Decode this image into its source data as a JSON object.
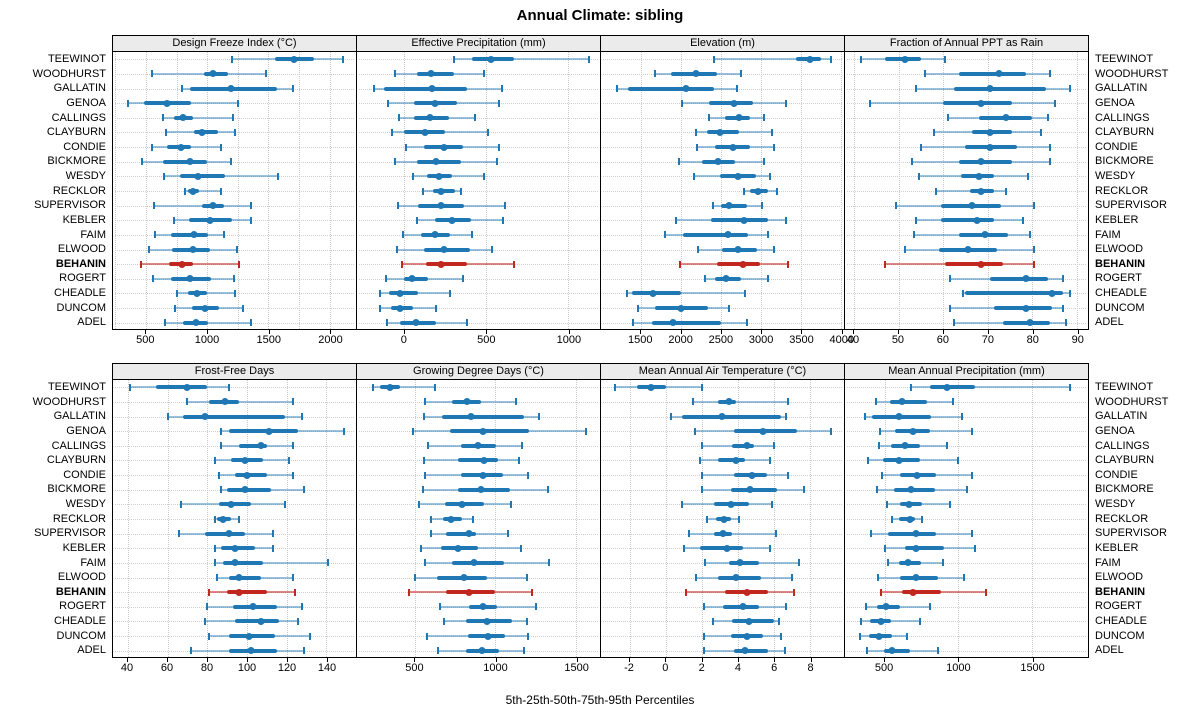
{
  "title": "Annual Climate: sibling",
  "caption": "5th-25th-50th-75th-95th Percentiles",
  "percentile_labels": [
    "5th",
    "25th",
    "50th",
    "75th",
    "95th"
  ],
  "highlight_station": "BEHANIN",
  "colors": {
    "series": "#1f77b4",
    "series_light": "rgba(31,119,180,0.45)",
    "highlight": "#c2271f",
    "highlight_light": "rgba(194,39,31,0.55)",
    "header_bg": "#ebebeb",
    "grid": "#c9c9c9",
    "border": "#000000"
  },
  "stations": [
    "TEEWINOT",
    "WOODHURST",
    "GALLATIN",
    "GENOA",
    "CALLINGS",
    "CLAYBURN",
    "CONDIE",
    "BICKMORE",
    "WESDY",
    "RECKLOR",
    "SUPERVISOR",
    "KEBLER",
    "FAIM",
    "ELWOOD",
    "BEHANIN",
    "ROGERT",
    "CHEADLE",
    "DUNCOM",
    "ADEL"
  ],
  "chart_data": [
    {
      "type": "percentile-range",
      "title": "Design Freeze Index (°C)",
      "xticks": [
        500,
        1000,
        1500,
        2000
      ],
      "xlim": [
        230,
        2215
      ],
      "grid_step": 250,
      "series": {
        "TEEWINOT": [
          1200,
          1550,
          1710,
          1870,
          2110
        ],
        "WOODHURST": [
          550,
          970,
          1050,
          1170,
          1480
        ],
        "GALLATIN": [
          790,
          860,
          1190,
          1570,
          1700
        ],
        "GENOA": [
          355,
          480,
          675,
          865,
          1255
        ],
        "CALLINGS": [
          635,
          730,
          800,
          880,
          1210
        ],
        "CLAYBURN": [
          660,
          890,
          955,
          1090,
          1225
        ],
        "CONDIE": [
          545,
          675,
          785,
          865,
          1110
        ],
        "BICKMORE": [
          465,
          635,
          855,
          1000,
          1190
        ],
        "WESDY": [
          650,
          780,
          925,
          1145,
          1575
        ],
        "RECKLOR": [
          815,
          840,
          880,
          935,
          1110
        ],
        "SUPERVISOR": [
          565,
          960,
          1050,
          1135,
          1355
        ],
        "KEBLER": [
          725,
          850,
          1020,
          1205,
          1355
        ],
        "FAIM": [
          575,
          700,
          895,
          1010,
          1135
        ],
        "ELWOOD": [
          525,
          710,
          880,
          1025,
          1245
        ],
        "BEHANIN": [
          460,
          685,
          795,
          880,
          1260
        ],
        "ROGERT": [
          555,
          700,
          860,
          1030,
          1220
        ],
        "CHEADLE": [
          750,
          845,
          915,
          1000,
          1225
        ],
        "DUNCOM": [
          735,
          875,
          985,
          1100,
          1295
        ],
        "ADEL": [
          655,
          800,
          910,
          1005,
          1355
        ]
      }
    },
    {
      "type": "percentile-range",
      "title": "Effective Precipitation (mm)",
      "xticks": [
        0,
        500,
        1000
      ],
      "xlim": [
        -290,
        1195
      ],
      "grid_step": null,
      "series": {
        "TEEWINOT": [
          305,
          415,
          530,
          670,
          1130
        ],
        "WOODHURST": [
          -55,
          75,
          160,
          300,
          485
        ],
        "GALLATIN": [
          -185,
          -125,
          170,
          385,
          595
        ],
        "GENOA": [
          -100,
          60,
          185,
          320,
          580
        ],
        "CALLINGS": [
          -35,
          60,
          155,
          275,
          430
        ],
        "CLAYBURN": [
          -75,
          -5,
          125,
          250,
          510
        ],
        "CONDIE": [
          10,
          120,
          240,
          355,
          580
        ],
        "BICKMORE": [
          -60,
          75,
          190,
          345,
          565
        ],
        "WESDY": [
          55,
          140,
          210,
          290,
          485
        ],
        "RECKLOR": [
          115,
          175,
          225,
          310,
          345
        ],
        "SUPERVISOR": [
          -40,
          80,
          225,
          365,
          615
        ],
        "KEBLER": [
          75,
          185,
          290,
          405,
          605
        ],
        "FAIM": [
          -10,
          100,
          185,
          280,
          415
        ],
        "ELWOOD": [
          -45,
          120,
          240,
          400,
          535
        ],
        "BEHANIN": [
          -15,
          130,
          225,
          385,
          670
        ],
        "ROGERT": [
          -110,
          0,
          45,
          145,
          355
        ],
        "CHEADLE": [
          -150,
          -95,
          -25,
          80,
          280
        ],
        "DUNCOM": [
          -150,
          -80,
          -30,
          55,
          195
        ],
        "ADEL": [
          -105,
          -30,
          70,
          190,
          385
        ]
      }
    },
    {
      "type": "percentile-range",
      "title": "Elevation (m)",
      "xticks": [
        1500,
        2000,
        2500,
        3000,
        3500,
        4000
      ],
      "xlim": [
        1000,
        4040
      ],
      "grid_step": null,
      "series": {
        "TEEWINOT": [
          2410,
          3435,
          3610,
          3750,
          3875
        ],
        "WOODHURST": [
          1675,
          1875,
          2185,
          2450,
          2755
        ],
        "GALLATIN": [
          1205,
          1340,
          2060,
          2410,
          2700
        ],
        "GENOA": [
          2010,
          2355,
          2660,
          2900,
          3320
        ],
        "CALLINGS": [
          2355,
          2550,
          2730,
          2865,
          3045
        ],
        "CLAYBURN": [
          2185,
          2325,
          2490,
          2730,
          3140
        ],
        "CONDIE": [
          2195,
          2420,
          2650,
          2870,
          3170
        ],
        "BICKMORE": [
          1980,
          2265,
          2460,
          2680,
          3040
        ],
        "WESDY": [
          2160,
          2490,
          2720,
          2935,
          3110
        ],
        "RECKLOR": [
          2795,
          2870,
          2970,
          3090,
          3200
        ],
        "SUPERVISOR": [
          2395,
          2495,
          2605,
          2830,
          3015
        ],
        "KEBLER": [
          1935,
          2375,
          2785,
          3095,
          3310
        ],
        "FAIM": [
          1800,
          2020,
          2595,
          2845,
          3090
        ],
        "ELWOOD": [
          2210,
          2510,
          2720,
          2955,
          3165
        ],
        "BEHANIN": [
          1990,
          2445,
          2775,
          2995,
          3340
        ],
        "ROGERT": [
          2305,
          2420,
          2565,
          2755,
          3095
        ],
        "CHEADLE": [
          1330,
          1390,
          1650,
          2005,
          2805
        ],
        "DUNCOM": [
          1460,
          1675,
          2000,
          2340,
          2600
        ],
        "ADEL": [
          1400,
          1635,
          1895,
          2500,
          2830
        ]
      }
    },
    {
      "type": "percentile-range",
      "title": "Fraction of Annual PPT as Rain",
      "xticks": [
        40,
        50,
        60,
        70,
        80,
        90
      ],
      "xlim": [
        38,
        92.5
      ],
      "grid_step": null,
      "series": {
        "TEEWINOT": [
          41.5,
          47,
          51.5,
          55,
          60.5
        ],
        "WOODHURST": [
          56,
          63.5,
          72.5,
          78.5,
          84
        ],
        "GALLATIN": [
          54,
          62.5,
          70.5,
          83,
          88.5
        ],
        "GENOA": [
          43.5,
          60,
          68.5,
          75.5,
          85
        ],
        "CALLINGS": [
          61,
          68,
          74,
          80,
          83.5
        ],
        "CLAYBURN": [
          58,
          66.5,
          70.5,
          75.5,
          82
        ],
        "CONDIE": [
          55,
          65,
          70.5,
          76.5,
          84
        ],
        "BICKMORE": [
          53,
          63.5,
          68.5,
          75.5,
          84
        ],
        "WESDY": [
          54.5,
          64,
          68,
          71.5,
          79
        ],
        "RECKLOR": [
          58.5,
          66,
          68.5,
          71.5,
          74
        ],
        "SUPERVISOR": [
          49.5,
          59.5,
          66.5,
          73,
          80.5
        ],
        "KEBLER": [
          54,
          59.5,
          67.5,
          71.5,
          78
        ],
        "FAIM": [
          53.5,
          63.5,
          69.5,
          74.5,
          79.5
        ],
        "ELWOOD": [
          51.5,
          59,
          65.5,
          72,
          80.5
        ],
        "BEHANIN": [
          47,
          60.5,
          68.5,
          73.5,
          80.5
        ],
        "ROGERT": [
          61.5,
          70.5,
          78.5,
          83.5,
          87
        ],
        "CHEADLE": [
          64.5,
          65,
          84.5,
          87,
          88.5
        ],
        "DUNCOM": [
          61.5,
          71.5,
          78.5,
          84.5,
          87
        ],
        "ADEL": [
          62.5,
          73.5,
          79.5,
          84,
          87.5
        ]
      }
    },
    {
      "type": "percentile-range",
      "title": "Frost-Free Days",
      "xticks": [
        40,
        60,
        80,
        100,
        120,
        140
      ],
      "xlim": [
        32.5,
        155
      ],
      "grid_step": null,
      "series": {
        "TEEWINOT": [
          41,
          54,
          70,
          80,
          91
        ],
        "WOODHURST": [
          70,
          81,
          89,
          96,
          123
        ],
        "GALLATIN": [
          60,
          68,
          79,
          119,
          128
        ],
        "GENOA": [
          87,
          91,
          111,
          126,
          149
        ],
        "CALLINGS": [
          87,
          96,
          107,
          110,
          123
        ],
        "CLAYBURN": [
          84,
          92,
          99,
          108,
          121
        ],
        "CONDIE": [
          86,
          94,
          100,
          110,
          123
        ],
        "BICKMORE": [
          87,
          90,
          99,
          112,
          129
        ],
        "WESDY": [
          67,
          86,
          92,
          102,
          119
        ],
        "RECKLOR": [
          84,
          85,
          88,
          92,
          96
        ],
        "SUPERVISOR": [
          66,
          79,
          91,
          99,
          113
        ],
        "KEBLER": [
          84,
          87,
          94,
          104,
          113
        ],
        "FAIM": [
          84,
          88,
          94,
          108,
          141
        ],
        "ELWOOD": [
          85,
          91,
          96,
          107,
          123
        ],
        "BEHANIN": [
          81,
          90,
          96,
          110,
          124
        ],
        "ROGERT": [
          80,
          93,
          103,
          115,
          128
        ],
        "CHEADLE": [
          79,
          94,
          107,
          116,
          126
        ],
        "DUNCOM": [
          81,
          91,
          101,
          114,
          132
        ],
        "ADEL": [
          72,
          91,
          102,
          115,
          129
        ]
      }
    },
    {
      "type": "percentile-range",
      "title": "Growing Degree Days (°C)",
      "xticks": [
        500,
        1000,
        1500
      ],
      "xlim": [
        140,
        1650
      ],
      "grid_step": null,
      "series": {
        "TEEWINOT": [
          240,
          285,
          345,
          410,
          625
        ],
        "WOODHURST": [
          565,
          730,
          825,
          910,
          1125
        ],
        "GALLATIN": [
          555,
          670,
          850,
          1180,
          1270
        ],
        "GENOA": [
          490,
          715,
          925,
          1210,
          1565
        ],
        "CALLINGS": [
          580,
          785,
          890,
          1005,
          1165
        ],
        "CLAYBURN": [
          555,
          765,
          930,
          1015,
          1145
        ],
        "CONDIE": [
          560,
          785,
          920,
          1045,
          1205
        ],
        "BICKMORE": [
          550,
          765,
          910,
          1090,
          1325
        ],
        "WESDY": [
          525,
          685,
          795,
          930,
          1095
        ],
        "RECKLOR": [
          600,
          675,
          725,
          790,
          860
        ],
        "SUPERVISOR": [
          600,
          690,
          835,
          880,
          1080
        ],
        "KEBLER": [
          535,
          665,
          765,
          895,
          1160
        ],
        "FAIM": [
          560,
          730,
          870,
          1055,
          1335
        ],
        "ELWOOD": [
          500,
          635,
          805,
          950,
          1195
        ],
        "BEHANIN": [
          465,
          690,
          835,
          1000,
          1230
        ],
        "ROGERT": [
          655,
          835,
          925,
          1010,
          1250
        ],
        "CHEADLE": [
          680,
          820,
          950,
          1105,
          1195
        ],
        "DUNCOM": [
          575,
          830,
          955,
          1060,
          1205
        ],
        "ADEL": [
          645,
          815,
          915,
          1025,
          1175
        ]
      }
    },
    {
      "type": "percentile-range",
      "title": "Mean Annual Air Temperature (°C)",
      "xticks": [
        -2,
        0,
        2,
        4,
        6,
        8
      ],
      "xlim": [
        -3.6,
        9.9
      ],
      "grid_step": null,
      "series": {
        "TEEWINOT": [
          -2.8,
          -1.6,
          -0.8,
          0,
          2
        ],
        "WOODHURST": [
          1.5,
          2.9,
          3.5,
          3.9,
          6.8
        ],
        "GALLATIN": [
          0.3,
          0.9,
          3.1,
          6.4,
          6.7
        ],
        "GENOA": [
          1.6,
          3.8,
          5.4,
          7.3,
          9.2
        ],
        "CALLINGS": [
          2,
          3.7,
          4.5,
          4.9,
          6
        ],
        "CLAYBURN": [
          1.9,
          2.9,
          3.9,
          4.4,
          5.8
        ],
        "CONDIE": [
          2,
          3.8,
          4.8,
          5.6,
          6.8
        ],
        "BICKMORE": [
          2,
          3.6,
          4.7,
          6.2,
          7.7
        ],
        "WESDY": [
          0.9,
          2.7,
          3.6,
          4.6,
          5.9
        ],
        "RECKLOR": [
          2.3,
          2.8,
          3.25,
          3.65,
          4.05
        ],
        "SUPERVISOR": [
          1.3,
          2.7,
          3.2,
          3.7,
          6.1
        ],
        "KEBLER": [
          1,
          1.9,
          3.4,
          4.3,
          5.8
        ],
        "FAIM": [
          2.2,
          3.5,
          4.1,
          5.2,
          7.4
        ],
        "ELWOOD": [
          1.7,
          2.9,
          3.9,
          5.3,
          7
        ],
        "BEHANIN": [
          1.1,
          3.3,
          4.5,
          5.7,
          7.1
        ],
        "ROGERT": [
          2.1,
          3.2,
          4.3,
          5.2,
          6.7
        ],
        "CHEADLE": [
          2.6,
          3.7,
          4.6,
          6,
          6.3
        ],
        "DUNCOM": [
          2.1,
          3.6,
          4.5,
          5.4,
          6.4
        ],
        "ADEL": [
          2.1,
          3.8,
          4.4,
          5.7,
          6.6
        ]
      }
    },
    {
      "type": "percentile-range",
      "title": "Mean Annual Precipitation (mm)",
      "xticks": [
        500,
        1000,
        1500
      ],
      "xlim": [
        230,
        1880
      ],
      "grid_step": null,
      "series": {
        "TEEWINOT": [
          675,
          805,
          925,
          1110,
          1760
        ],
        "WOODHURST": [
          440,
          535,
          620,
          785,
          960
        ],
        "GALLATIN": [
          365,
          415,
          595,
          815,
          1025
        ],
        "GENOA": [
          465,
          570,
          695,
          810,
          1090
        ],
        "CALLINGS": [
          460,
          545,
          635,
          740,
          920
        ],
        "CLAYBURN": [
          385,
          485,
          595,
          740,
          995
        ],
        "CONDIE": [
          480,
          605,
          720,
          850,
          1095
        ],
        "BICKMORE": [
          445,
          560,
          680,
          840,
          1055
        ],
        "WESDY": [
          515,
          605,
          665,
          750,
          945
        ],
        "RECKLOR": [
          550,
          600,
          670,
          705,
          750
        ],
        "SUPERVISOR": [
          405,
          525,
          715,
          850,
          1095
        ],
        "KEBLER": [
          505,
          635,
          715,
          905,
          1115
        ],
        "FAIM": [
          525,
          595,
          660,
          745,
          895
        ],
        "ELWOOD": [
          455,
          605,
          710,
          860,
          1040
        ],
        "BEHANIN": [
          475,
          615,
          695,
          880,
          1190
        ],
        "ROGERT": [
          370,
          450,
          510,
          605,
          810
        ],
        "CHEADLE": [
          340,
          400,
          475,
          545,
          740
        ],
        "DUNCOM": [
          335,
          395,
          460,
          550,
          650
        ],
        "ADEL": [
          380,
          495,
          550,
          670,
          860
        ]
      }
    }
  ]
}
